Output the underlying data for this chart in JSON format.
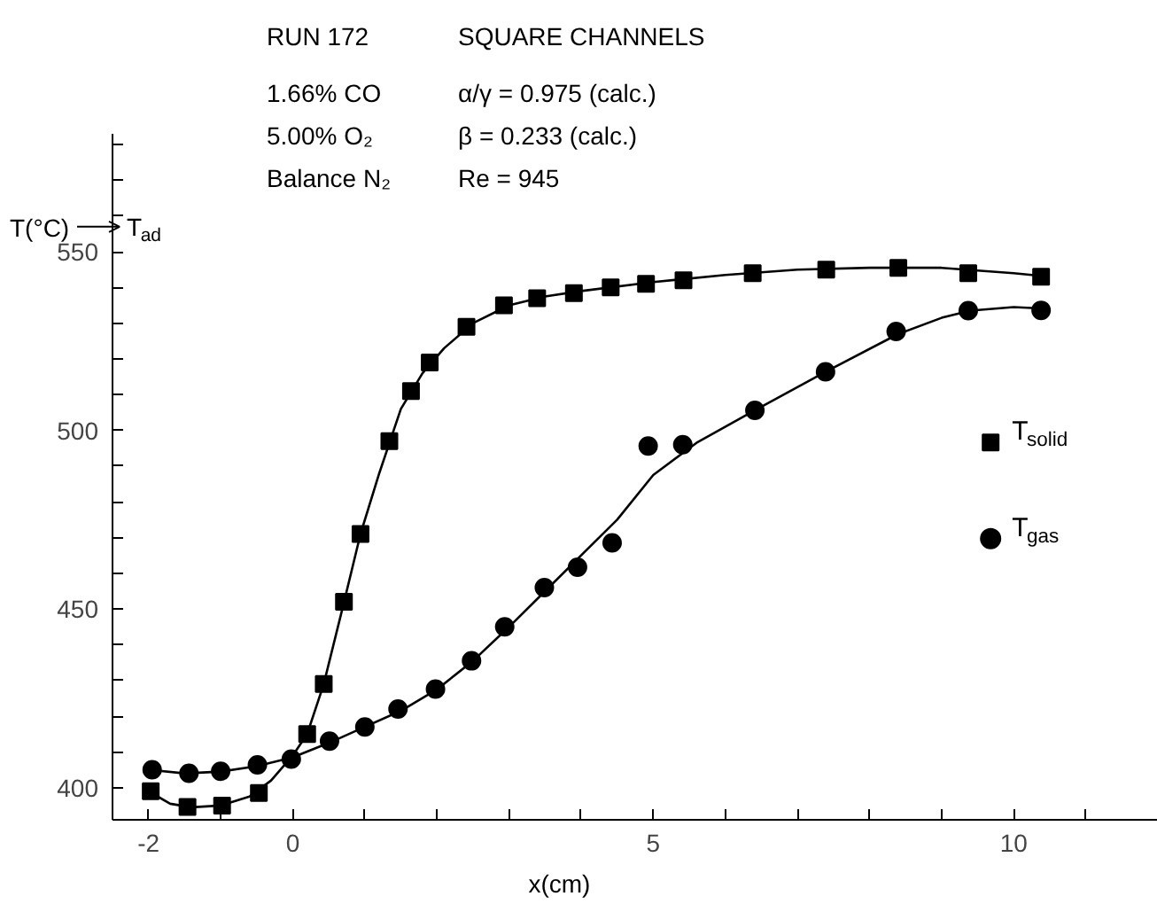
{
  "chart_data": {
    "type": "scatter",
    "xlabel": "x(cm)",
    "ylabel": "T(°C)",
    "annotations": [
      "RUN 172",
      "SQUARE CHANNELS",
      "1.66% CO",
      "α/γ = 0.975 (calc.)",
      "5.00% O₂",
      "β = 0.233 (calc.)",
      "Balance N₂",
      "Re = 945"
    ],
    "ref_lines": [
      {
        "axis": "y",
        "value": 557,
        "label": "T$_{ad}$"
      }
    ],
    "xlim": [
      -2.5,
      12
    ],
    "xticks": [
      {
        "value": -2,
        "label": "-2"
      },
      {
        "value": -1,
        "label": null
      },
      0,
      {
        "value": 1,
        "label": null
      },
      {
        "value": 2,
        "label": null
      },
      {
        "value": 3,
        "label": null
      },
      {
        "value": 4,
        "label": null
      },
      5,
      {
        "value": 6,
        "label": null
      },
      {
        "value": 7,
        "label": null
      },
      {
        "value": 8,
        "label": null
      },
      {
        "value": 9,
        "label": null
      },
      10,
      {
        "value": 11,
        "label": null
      }
    ],
    "ylim": [
      391,
      583
    ],
    "yticks": [
      400,
      {
        "value": 410,
        "label": null
      },
      {
        "value": 420,
        "label": null
      },
      {
        "value": 430,
        "label": null
      },
      {
        "value": 440,
        "label": null
      },
      450,
      {
        "value": 460,
        "label": null
      },
      {
        "value": 470,
        "label": null
      },
      {
        "value": 480,
        "label": null
      },
      {
        "value": 490,
        "label": null
      },
      500,
      {
        "value": 510,
        "label": null
      },
      {
        "value": 520,
        "label": null
      },
      {
        "value": 530,
        "label": null
      },
      {
        "value": 540,
        "label": null
      },
      550,
      {
        "value": 560,
        "label": null
      },
      {
        "value": 570,
        "label": null
      },
      {
        "value": 580,
        "label": null
      }
    ],
    "grid": false,
    "legend": "right",
    "series": [
      {
        "name": "T$_{solid}$",
        "marker": "square",
        "color": "#000000",
        "x": [
          -1.97,
          -1.46,
          -0.98,
          -0.47,
          0.2,
          0.43,
          0.71,
          0.94,
          1.34,
          1.64,
          1.9,
          2.41,
          2.93,
          3.39,
          3.9,
          4.41,
          4.9,
          5.42,
          6.38,
          7.4,
          8.4,
          9.37,
          10.38
        ],
        "values": [
          399,
          394.6,
          395,
          398.5,
          415,
          429,
          452,
          471,
          497,
          511,
          519,
          529,
          535,
          537,
          538.4,
          540,
          541,
          542,
          544,
          545,
          545.5,
          544,
          543
        ]
      },
      {
        "name": "T$_{gas}$",
        "marker": "circle",
        "color": "#000000",
        "x": [
          -1.95,
          -1.44,
          -1.0,
          -0.49,
          -0.02,
          0.51,
          1.0,
          1.46,
          1.98,
          2.48,
          2.94,
          3.49,
          3.95,
          4.43,
          4.93,
          5.41,
          6.41,
          7.39,
          8.37,
          9.37,
          10.38
        ],
        "values": [
          405,
          404,
          404.6,
          406.4,
          408,
          413,
          417,
          422,
          427.6,
          435.5,
          445,
          456,
          461.7,
          468.5,
          495.6,
          496,
          505.6,
          516.4,
          527.7,
          533.5,
          533.6
        ]
      },
      {
        "type": "line",
        "color": "#000000",
        "x": [
          -2,
          -1.7,
          -1.4,
          -1,
          -0.6,
          -0.3,
          0,
          0.2,
          0.43,
          0.7,
          0.94,
          1.2,
          1.5,
          1.8,
          2.1,
          2.5,
          3,
          3.5,
          4,
          5,
          6,
          7,
          8,
          9,
          10,
          10.5
        ],
        "values": [
          399,
          395.5,
          394.5,
          395,
          397.5,
          402,
          409,
          415,
          429,
          451,
          471,
          488,
          506,
          516,
          523,
          530,
          535,
          537.5,
          539,
          541.5,
          543.5,
          545,
          545.5,
          545.5,
          544,
          543
        ]
      },
      {
        "type": "line",
        "color": "#000000",
        "x": [
          -2,
          -1.5,
          -1,
          -0.5,
          0,
          0.5,
          1,
          1.5,
          2,
          2.5,
          3,
          3.5,
          4,
          4.5,
          5,
          5.6,
          6.4,
          7.4,
          8.4,
          9,
          9.4,
          10,
          10.5
        ],
        "values": [
          405,
          404,
          404.5,
          406,
          408.5,
          412.5,
          417,
          421.5,
          427.5,
          435.5,
          445,
          455,
          465,
          475,
          487.5,
          496.5,
          505.5,
          516.5,
          527,
          531.5,
          533.5,
          534.5,
          534
        ]
      }
    ]
  }
}
